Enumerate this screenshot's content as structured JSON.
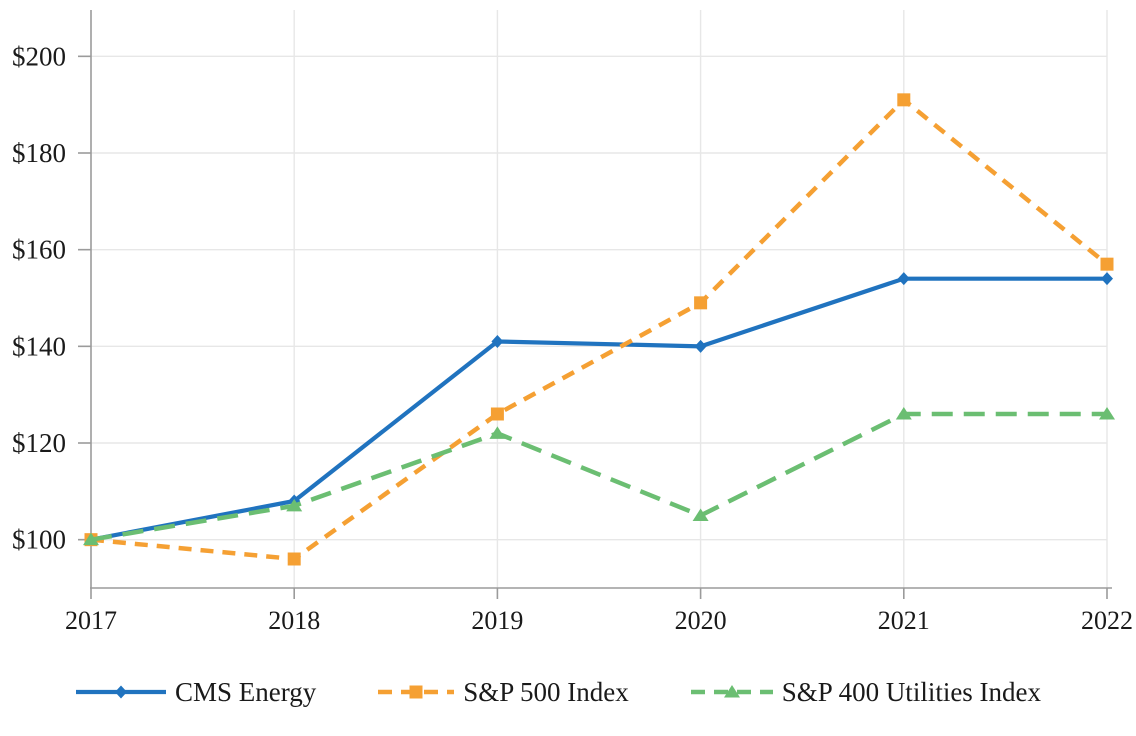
{
  "chart_data": {
    "type": "line",
    "title": "",
    "xlabel": "",
    "ylabel": "",
    "x_tick_labels": [
      "2017",
      "2018",
      "2019",
      "2020",
      "2021",
      "2022"
    ],
    "y_tick_labels": [
      "$100",
      "$120",
      "$140",
      "$160",
      "$180",
      "$200"
    ],
    "y_tick_values": [
      100,
      120,
      140,
      160,
      180,
      200
    ],
    "ylim": [
      90,
      210
    ],
    "grid": true,
    "legend_position": "bottom",
    "series": [
      {
        "name": "CMS Energy",
        "values": [
          100,
          108,
          141,
          140,
          154,
          154
        ],
        "color": "#2073BF",
        "line_style": "solid",
        "marker": "diamond"
      },
      {
        "name": "S&P 500 Index",
        "values": [
          100,
          96,
          126,
          149,
          191,
          157
        ],
        "color": "#F5A033",
        "line_style": "dashed",
        "marker": "square"
      },
      {
        "name": "S&P 400 Utilities Index",
        "values": [
          100,
          107,
          122,
          105,
          126,
          126
        ],
        "color": "#6BBE72",
        "line_style": "long-dash",
        "marker": "triangle"
      }
    ]
  },
  "colors": {
    "axis": "#9B9B9B",
    "grid": "#E7E7E7",
    "text": "#1a1a1a",
    "background": "#ffffff"
  }
}
